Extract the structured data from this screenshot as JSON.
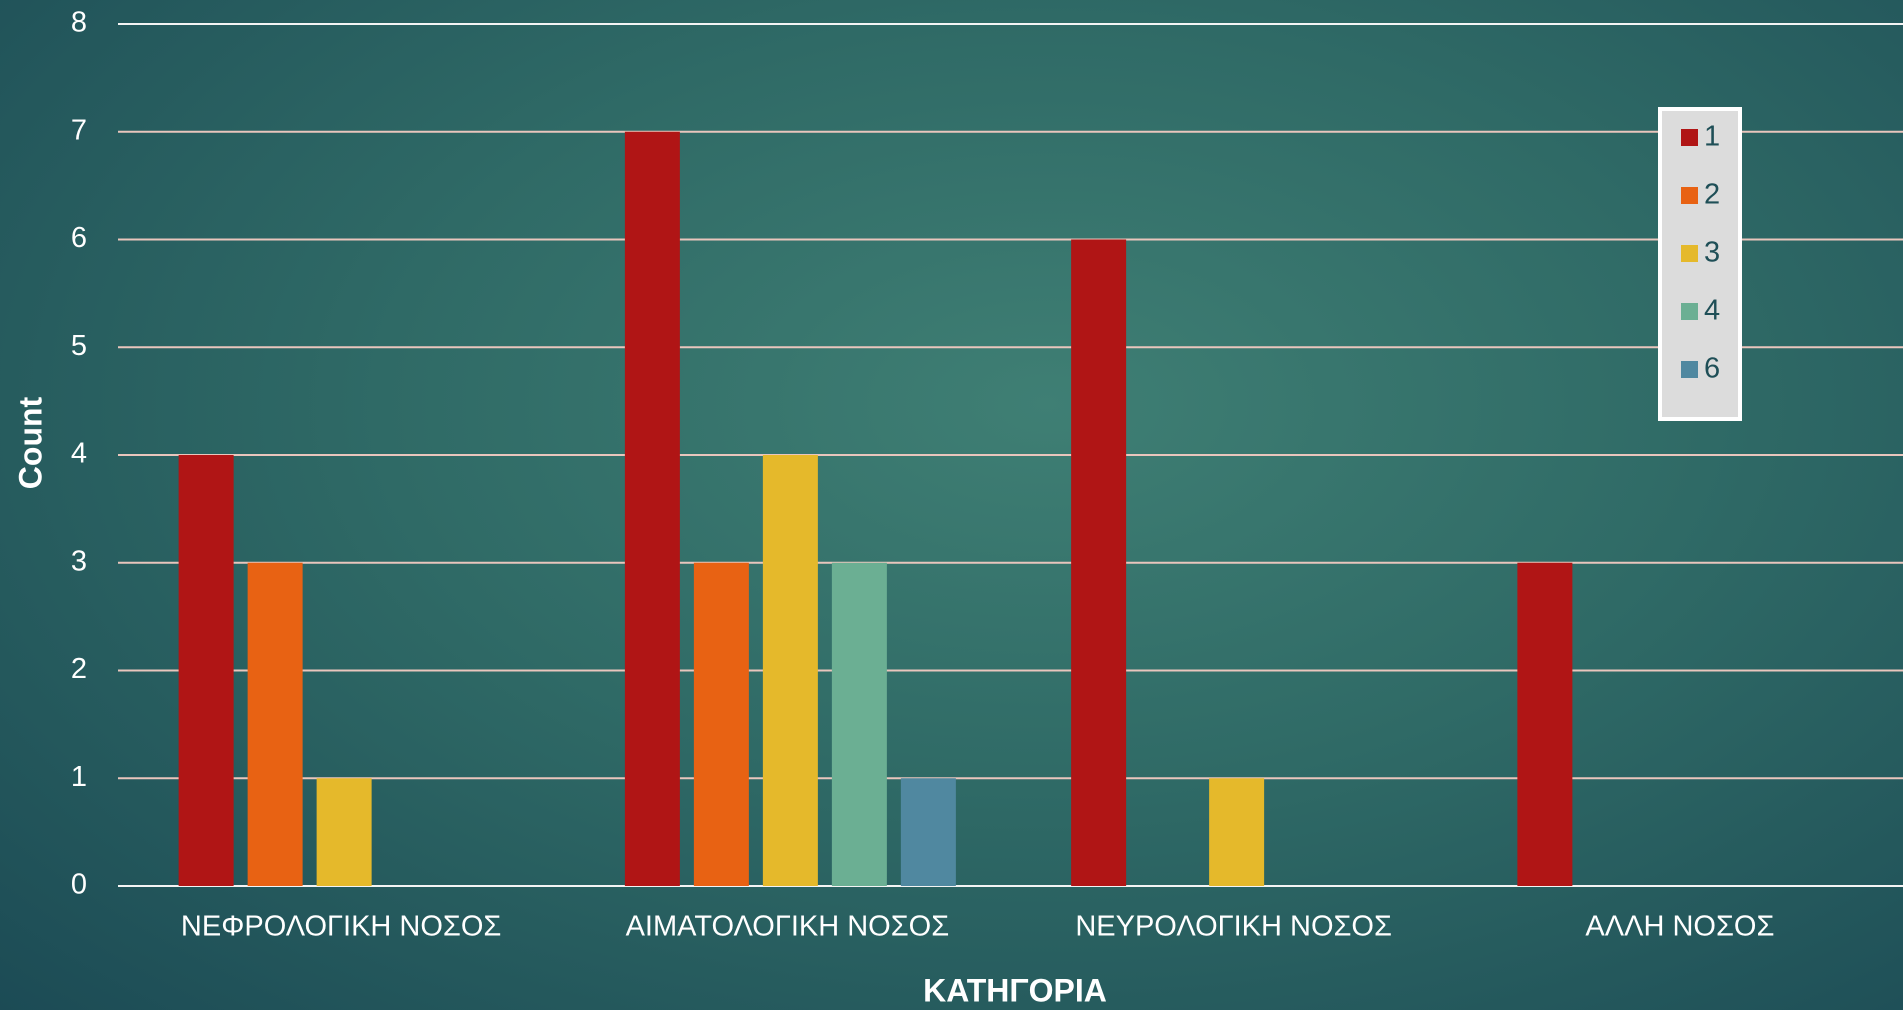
{
  "chart_data": {
    "type": "bar",
    "x_label": "ΚΑΤΗΓΟΡΙΑ",
    "y_label": "Count",
    "categories": [
      "ΝΕΦΡΟΛΟΓΙΚΗ ΝΟΣΟΣ",
      "ΑΙΜΑΤΟΛΟΓΙΚΗ ΝΟΣΟΣ",
      "ΝΕΥΡΟΛΟΓΙΚΗ ΝΟΣΟΣ",
      "ΑΛΛΗ ΝΟΣΟΣ"
    ],
    "series": [
      {
        "name": "1",
        "color": "#b01515",
        "values": [
          4,
          7,
          6,
          3
        ]
      },
      {
        "name": "2",
        "color": "#e86213",
        "values": [
          3,
          3,
          0,
          0
        ]
      },
      {
        "name": "3",
        "color": "#e5b92b",
        "values": [
          1,
          4,
          1,
          0
        ]
      },
      {
        "name": "4",
        "color": "#6baf93",
        "values": [
          0,
          3,
          0,
          0
        ]
      },
      {
        "name": "6",
        "color": "#5088a0",
        "values": [
          0,
          1,
          0,
          0
        ]
      }
    ],
    "ylim": [
      0,
      8
    ],
    "yticks": [
      0,
      1,
      2,
      3,
      4,
      5,
      6,
      7,
      8
    ],
    "grid": true,
    "legend": "upper right"
  }
}
